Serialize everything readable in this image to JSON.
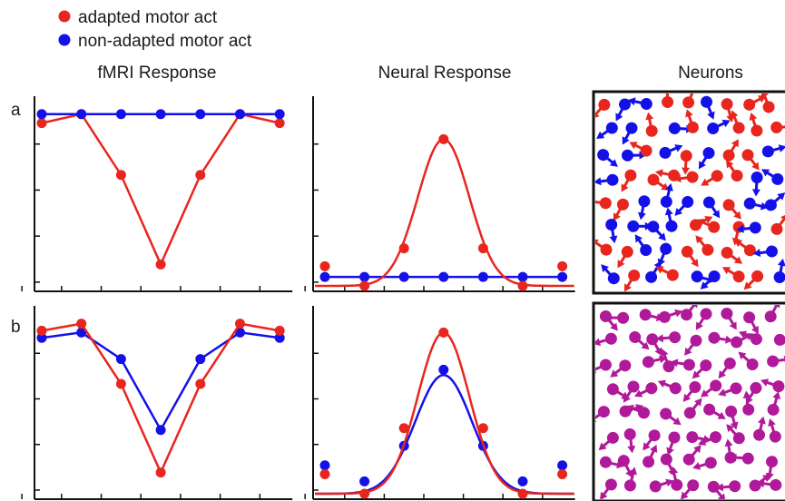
{
  "legend": [
    {
      "label": "adapted motor act",
      "color": "#e8261e"
    },
    {
      "label": "non-adapted motor act",
      "color": "#1411e8"
    }
  ],
  "column_titles": [
    "fMRI Response",
    "Neural Response",
    "Neurons"
  ],
  "row_labels": [
    "a",
    "b"
  ],
  "colors": {
    "red": "#e8261e",
    "blue": "#1411e8",
    "magenta": "#b0199a",
    "axis": "#111111"
  },
  "chart_data": [
    {
      "type": "line",
      "panel": "a-fMRI",
      "x": [
        1,
        2,
        3,
        4,
        5,
        6,
        7
      ],
      "ylim": [
        0,
        1.05
      ],
      "series": [
        {
          "name": "adapted motor act",
          "values": [
            0.91,
            0.96,
            0.62,
            0.12,
            0.62,
            0.96,
            0.91
          ]
        },
        {
          "name": "non-adapted motor act",
          "values": [
            0.96,
            0.96,
            0.96,
            0.96,
            0.96,
            0.96,
            0.96
          ]
        }
      ]
    },
    {
      "type": "line",
      "panel": "a-Neural",
      "x": [
        1,
        2,
        3,
        4,
        5,
        6,
        7
      ],
      "ylim": [
        0,
        1.05
      ],
      "series": [
        {
          "name": "adapted motor act",
          "values": [
            0.11,
            0.0,
            0.21,
            0.82,
            0.21,
            0.0,
            0.11
          ],
          "curve": {
            "baseline": 0.0,
            "amplitude": 0.82,
            "sigma": 0.65
          }
        },
        {
          "name": "non-adapted motor act",
          "values": [
            0.05,
            0.05,
            0.05,
            0.05,
            0.05,
            0.05,
            0.05
          ]
        }
      ]
    },
    {
      "type": "line",
      "panel": "b-fMRI",
      "x": [
        1,
        2,
        3,
        4,
        5,
        6,
        7
      ],
      "ylim": [
        0,
        1.05
      ],
      "series": [
        {
          "name": "adapted motor act",
          "values": [
            0.92,
            0.96,
            0.62,
            0.12,
            0.62,
            0.96,
            0.92
          ]
        },
        {
          "name": "non-adapted motor act",
          "values": [
            0.88,
            0.91,
            0.76,
            0.36,
            0.76,
            0.91,
            0.88
          ]
        }
      ]
    },
    {
      "type": "line",
      "panel": "b-Neural",
      "x": [
        1,
        2,
        3,
        4,
        5,
        6,
        7
      ],
      "ylim": [
        0,
        1.05
      ],
      "series": [
        {
          "name": "adapted motor act",
          "values": [
            0.11,
            0.0,
            0.37,
            0.91,
            0.37,
            0.0,
            0.11
          ],
          "curve": {
            "baseline": 0.0,
            "amplitude": 0.91,
            "sigma": 0.65
          }
        },
        {
          "name": "non-adapted motor act",
          "values": [
            0.16,
            0.07,
            0.27,
            0.7,
            0.27,
            0.07,
            0.16
          ],
          "curve": {
            "baseline": 0.0,
            "amplitude": 0.67,
            "sigma": 0.72
          }
        }
      ]
    }
  ],
  "neuron_panels": [
    {
      "panel": "a-Neurons",
      "colors": [
        "red",
        "blue"
      ]
    },
    {
      "panel": "b-Neurons",
      "colors": [
        "magenta"
      ]
    }
  ]
}
